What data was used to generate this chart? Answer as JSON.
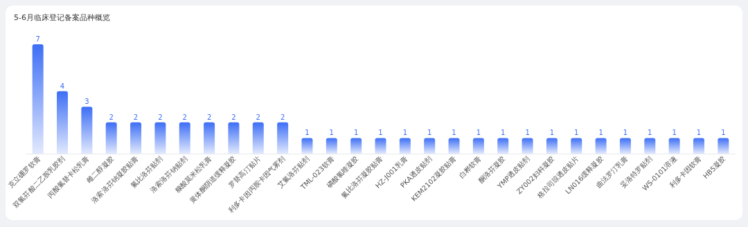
{
  "chart_data": {
    "type": "bar",
    "title": "5-6月临床登记备案品种概览",
    "categories": [
      "克立硼罗软膏",
      "双氯芬酸二乙胺乳胶剂",
      "丙酸氟替卡松乳膏",
      "雌二醇凝胶",
      "洛索洛芬钠凝胶贴膏",
      "氟比洛芬贴剂",
      "洛索洛芬钠贴剂",
      "糠酸莫米松乳膏",
      "黄体酮阴道缓释凝胶",
      "罗替高汀贴片",
      "利多卡因丙胺卡因气雾剂",
      "艾氟洛芬贴剂",
      "TML-023软膏",
      "磷酸氯喹凝胶",
      "氟比洛芬凝胶贴膏",
      "HZ-J001乳膏",
      "PKA透皮贴剂",
      "KEM2102凝胶贴膏",
      "白桦软膏",
      "酮洛芬凝胶",
      "YMP透皮贴剂",
      "ZY002妇科凝胶",
      "格拉司琼透皮贴片",
      "LN016缓释凝胶",
      "曲法罗汀乳膏",
      "妥洛特罗贴剂",
      "WS-0101溶液",
      "利多卡因软膏",
      "HB5凝胶"
    ],
    "values": [
      7,
      4,
      3,
      2,
      2,
      2,
      2,
      2,
      2,
      2,
      2,
      1,
      1,
      1,
      1,
      1,
      1,
      1,
      1,
      1,
      1,
      1,
      1,
      1,
      1,
      1,
      1,
      1,
      1
    ],
    "color": "#3d6ef5",
    "data_labels": true
  }
}
